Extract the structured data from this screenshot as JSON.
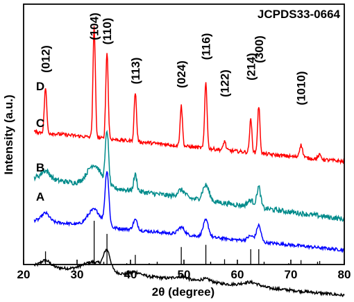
{
  "chart_data": {
    "type": "line",
    "title": "",
    "xlabel": "2θ (degree)",
    "ylabel": "Intensity (a.u.)",
    "xlim": [
      20,
      80
    ],
    "xticks": [
      20,
      30,
      40,
      50,
      60,
      70,
      80
    ],
    "yticks_visible": false,
    "grid": false,
    "reference_label": "JCPDS33-0664",
    "reference_lines": [
      {
        "x": 24.1,
        "intensity": 30
      },
      {
        "x": 24.9,
        "intensity": 3
      },
      {
        "x": 33.2,
        "intensity": 100
      },
      {
        "x": 35.6,
        "intensity": 70
      },
      {
        "x": 39.3,
        "intensity": 3
      },
      {
        "x": 40.9,
        "intensity": 22
      },
      {
        "x": 43.5,
        "intensity": 3
      },
      {
        "x": 49.5,
        "intensity": 40
      },
      {
        "x": 54.1,
        "intensity": 45
      },
      {
        "x": 57.6,
        "intensity": 12
      },
      {
        "x": 62.5,
        "intensity": 35
      },
      {
        "x": 64.0,
        "intensity": 35
      },
      {
        "x": 69.6,
        "intensity": 3
      },
      {
        "x": 71.9,
        "intensity": 10
      },
      {
        "x": 75.4,
        "intensity": 8
      }
    ],
    "peak_labels": [
      {
        "text": "(012)",
        "x": 24.1
      },
      {
        "text": "(104)",
        "x": 33.2
      },
      {
        "text": "(110)",
        "x": 35.6
      },
      {
        "text": "(113)",
        "x": 40.9
      },
      {
        "text": "(024)",
        "x": 49.5
      },
      {
        "text": "(116)",
        "x": 54.1
      },
      {
        "text": "(122)",
        "x": 57.6
      },
      {
        "text": "(214)",
        "x": 62.5
      },
      {
        "text": "(300)",
        "x": 64.0
      },
      {
        "text": "(1010)",
        "x": 71.9
      }
    ],
    "series": [
      {
        "name": "A",
        "color": "#000000",
        "baseline": 0.0,
        "slope": -0.05,
        "noise": 0.28,
        "peaks": [
          [
            24.1,
            0.6,
            0.9
          ],
          [
            33.2,
            0.9,
            2.0
          ],
          [
            35.6,
            1.8,
            0.6
          ],
          [
            41.0,
            0.3,
            1.0
          ],
          [
            49.5,
            0.3,
            1.2
          ],
          [
            54.1,
            0.3,
            1.0
          ],
          [
            62.5,
            0.4,
            1.5
          ]
        ]
      },
      {
        "name": "B",
        "color": "#0000ff",
        "baseline": 4.4,
        "slope": -0.05,
        "noise": 0.3,
        "peaks": [
          [
            24.1,
            0.8,
            0.7
          ],
          [
            33.2,
            1.6,
            1.2
          ],
          [
            35.6,
            5.3,
            0.35
          ],
          [
            40.9,
            1.0,
            0.4
          ],
          [
            49.5,
            0.7,
            0.6
          ],
          [
            54.1,
            1.6,
            0.5
          ],
          [
            62.5,
            0.5,
            0.6
          ],
          [
            64.0,
            1.6,
            0.4
          ]
        ]
      },
      {
        "name": "C",
        "color": "#008b8b",
        "baseline": 8.6,
        "slope": -0.07,
        "noise": 0.5,
        "peaks": [
          [
            24.1,
            0.8,
            0.8
          ],
          [
            33.2,
            2.0,
            1.3
          ],
          [
            35.6,
            5.2,
            0.3
          ],
          [
            40.9,
            1.6,
            0.3
          ],
          [
            49.5,
            0.7,
            0.7
          ],
          [
            54.1,
            1.5,
            0.6
          ],
          [
            62.5,
            0.6,
            0.6
          ],
          [
            64.0,
            2.0,
            0.35
          ]
        ]
      },
      {
        "name": "D",
        "color": "#ff0000",
        "baseline": 13.0,
        "slope": -0.05,
        "noise": 0.35,
        "peaks": [
          [
            24.1,
            4.4,
            0.22
          ],
          [
            33.2,
            10.7,
            0.22
          ],
          [
            35.6,
            8.5,
            0.22
          ],
          [
            40.9,
            4.8,
            0.22
          ],
          [
            49.5,
            3.9,
            0.22
          ],
          [
            54.1,
            6.5,
            0.22
          ],
          [
            57.6,
            0.9,
            0.22
          ],
          [
            62.5,
            3.2,
            0.22
          ],
          [
            64.0,
            4.6,
            0.22
          ],
          [
            71.9,
            1.2,
            0.3
          ],
          [
            75.4,
            0.4,
            0.3
          ]
        ]
      }
    ]
  }
}
